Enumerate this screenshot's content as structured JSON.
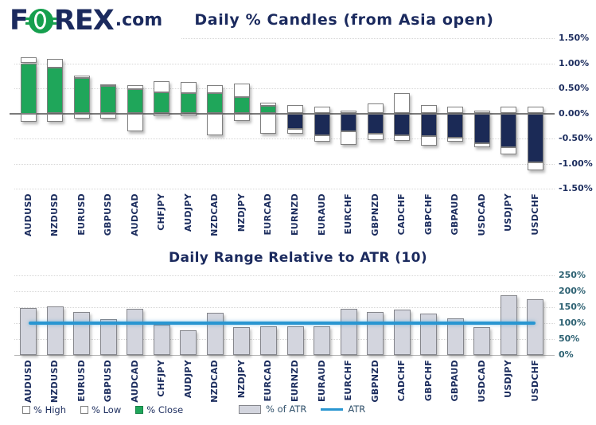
{
  "logo": {
    "f": "F",
    "rex": "REX",
    "dotcom": ".com"
  },
  "legend": {
    "high_label": "% High",
    "low_label": "% Low",
    "close_label": "% Close",
    "atr_bar_label": "% of ATR",
    "atr_line_label": "ATR"
  },
  "chart_data": [
    {
      "type": "candlestick",
      "title": "Daily % Candles (from Asia open)",
      "subtitle": "",
      "open_baseline": 0,
      "categories": [
        "AUDUSD",
        "NZDUSD",
        "EURUSD",
        "GBPUSD",
        "AUDCAD",
        "CHFJPY",
        "AUDJPY",
        "NZDCAD",
        "NZDJPY",
        "EURCAD",
        "EURNZD",
        "EURAUD",
        "EURCHF",
        "GBPNZD",
        "CADCHF",
        "GBPCHF",
        "GBPAUD",
        "USDCAD",
        "USDJPY",
        "USDCHF"
      ],
      "series": [
        {
          "name": "% High",
          "values": [
            1.12,
            1.08,
            0.76,
            0.58,
            0.57,
            0.64,
            0.63,
            0.57,
            0.6,
            0.22,
            0.16,
            0.13,
            0.05,
            0.2,
            0.41,
            0.16,
            0.14,
            0.06,
            0.14,
            0.14
          ]
        },
        {
          "name": "% Low",
          "values": [
            -0.17,
            -0.17,
            -0.11,
            -0.11,
            -0.36,
            -0.05,
            -0.05,
            -0.43,
            -0.15,
            -0.4,
            -0.41,
            -0.56,
            -0.63,
            -0.53,
            -0.55,
            -0.64,
            -0.57,
            -0.67,
            -0.81,
            -1.13
          ]
        },
        {
          "name": "% Close",
          "values": [
            1.0,
            0.91,
            0.71,
            0.54,
            0.49,
            0.42,
            0.4,
            0.41,
            0.32,
            0.15,
            -0.31,
            -0.44,
            -0.36,
            -0.41,
            -0.43,
            -0.46,
            -0.48,
            -0.6,
            -0.68,
            -0.97
          ]
        }
      ],
      "ylim": [
        -1.5,
        1.5
      ],
      "y_tick_values": [
        1.5,
        1.0,
        0.5,
        0.0,
        -0.5,
        -1.0,
        -1.5
      ],
      "y_tick_labels": [
        "1.50%",
        "1.00%",
        "0.50%",
        "0.00%",
        "-0.50%",
        "-1.00%",
        "-1.50%"
      ],
      "grid": true,
      "up_color": "#1fa65a",
      "down_color": "#1b2a56",
      "wick_color": "#ffffff"
    },
    {
      "type": "bar",
      "title": "Daily Range Relative to ATR (10)",
      "categories": [
        "AUDUSD",
        "NZDUSD",
        "EURUSD",
        "GBPUSD",
        "AUDCAD",
        "CHFJPY",
        "AUDJPY",
        "NZDCAD",
        "NZDJPY",
        "EURCAD",
        "EURNZD",
        "EURAUD",
        "EURCHF",
        "GBPNZD",
        "CADCHF",
        "GBPCHF",
        "GBPAUD",
        "USDCAD",
        "USDJPY",
        "USDCHF"
      ],
      "series": [
        {
          "name": "% of ATR",
          "type": "bar",
          "values": [
            148,
            152,
            135,
            113,
            144,
            95,
            77,
            133,
            87,
            91,
            89,
            89,
            144,
            135,
            142,
            129,
            115,
            87,
            188,
            176
          ]
        },
        {
          "name": "ATR",
          "type": "line",
          "values": [
            100,
            100,
            100,
            100,
            100,
            100,
            100,
            100,
            100,
            100,
            100,
            100,
            100,
            100,
            100,
            100,
            100,
            100,
            100,
            100
          ]
        }
      ],
      "ylim": [
        0,
        250
      ],
      "y_tick_values": [
        250,
        200,
        150,
        100,
        50,
        0
      ],
      "y_tick_labels": [
        "250%",
        "200%",
        "150%",
        "100%",
        "50%",
        "0%"
      ],
      "grid": true,
      "bar_color": "#d3d5de",
      "line_color": "#2996d1",
      "legend_position": "bottom"
    }
  ],
  "colors": {
    "brand_navy": "#1b2a5e",
    "brand_green": "#169f4e",
    "candle_up": "#1fa65a",
    "candle_down": "#1b2a56",
    "atr_bar": "#d3d5de",
    "atr_line": "#2996d1",
    "bottom_axis_text": "#2d6172"
  }
}
